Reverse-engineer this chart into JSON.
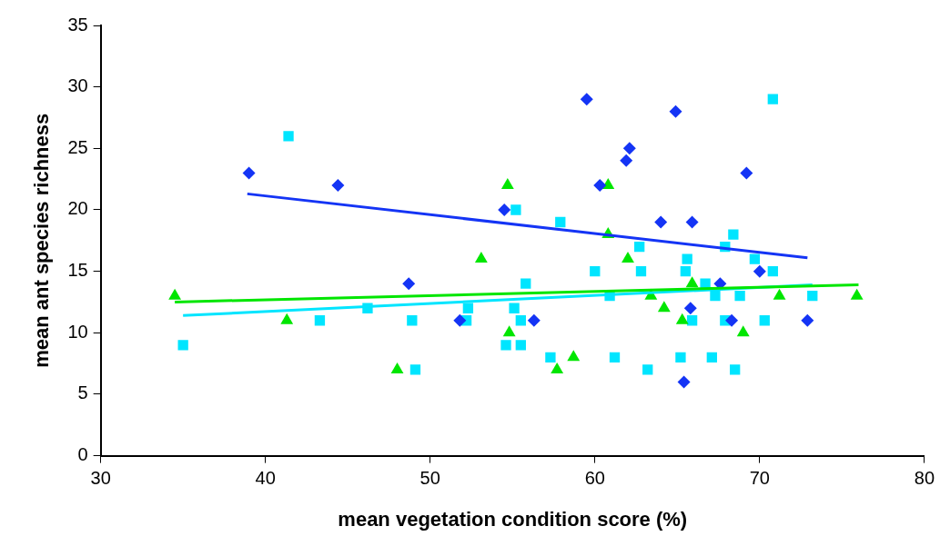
{
  "chart_data": {
    "type": "scatter",
    "xlabel": "mean vegetation condition score (%)",
    "ylabel": "mean ant species richness",
    "xlim": [
      30,
      80
    ],
    "xticks": [
      30,
      40,
      50,
      60,
      70,
      80
    ],
    "ylim": [
      0,
      35
    ],
    "yticks": [
      0,
      5,
      10,
      15,
      20,
      25,
      30,
      35
    ],
    "grid": false,
    "series": [
      {
        "color": "#1434f5",
        "marker": "diamond",
        "x": [
          39.0,
          44.4,
          48.7,
          51.8,
          54.5,
          56.3,
          59.5,
          60.3,
          62.1,
          61.9,
          64.9,
          64.0,
          65.9,
          65.8,
          65.4,
          67.6,
          68.3,
          69.2,
          70.0,
          72.9
        ],
        "values": [
          23,
          22,
          14,
          11,
          20,
          11,
          29,
          22,
          25,
          24,
          28,
          19,
          19,
          12,
          6,
          14,
          11,
          23,
          15,
          11
        ]
      },
      {
        "color": "#00e600",
        "marker": "triangle",
        "x": [
          34.5,
          41.3,
          48.0,
          53.1,
          54.7,
          54.8,
          57.7,
          58.7,
          60.8,
          60.8,
          62.0,
          63.4,
          64.2,
          65.3,
          65.9,
          69.0,
          71.2,
          75.9
        ],
        "values": [
          13,
          11,
          7,
          16,
          22,
          10,
          7,
          8,
          22,
          18,
          16,
          13,
          12,
          11,
          14,
          10,
          13,
          13
        ]
      },
      {
        "color": "#00e5ff",
        "marker": "square",
        "x": [
          41.4,
          35.0,
          43.3,
          46.2,
          48.9,
          49.1,
          52.3,
          52.2,
          55.2,
          57.9,
          55.1,
          55.5,
          55.8,
          54.6,
          55.5,
          57.3,
          60.0,
          60.9,
          61.2,
          62.7,
          62.8,
          63.2,
          65.6,
          65.5,
          65.2,
          65.9,
          66.7,
          67.3,
          67.1,
          68.4,
          67.9,
          67.9,
          68.8,
          68.5,
          69.7,
          70.8,
          70.3,
          70.8,
          73.2
        ],
        "values": [
          26,
          9,
          11,
          12,
          11,
          7,
          12,
          11,
          20,
          19,
          12,
          11,
          14,
          9,
          9,
          8,
          15,
          13,
          8,
          17,
          15,
          7,
          16,
          15,
          8,
          11,
          14,
          13,
          8,
          18,
          17,
          11,
          13,
          7,
          16,
          15,
          11,
          29,
          13
        ]
      },
      {
        "type": "line",
        "color": "#1434f5",
        "marker": "none",
        "x": [
          38.9,
          72.9
        ],
        "values": [
          21.3,
          16.1
        ]
      },
      {
        "type": "line",
        "color": "#00e600",
        "marker": "none",
        "x": [
          34.5,
          76.0
        ],
        "values": [
          12.5,
          13.9
        ]
      },
      {
        "type": "line",
        "color": "#00e5ff",
        "marker": "none",
        "x": [
          35.0,
          73.2
        ],
        "values": [
          11.4,
          13.9
        ]
      }
    ]
  }
}
